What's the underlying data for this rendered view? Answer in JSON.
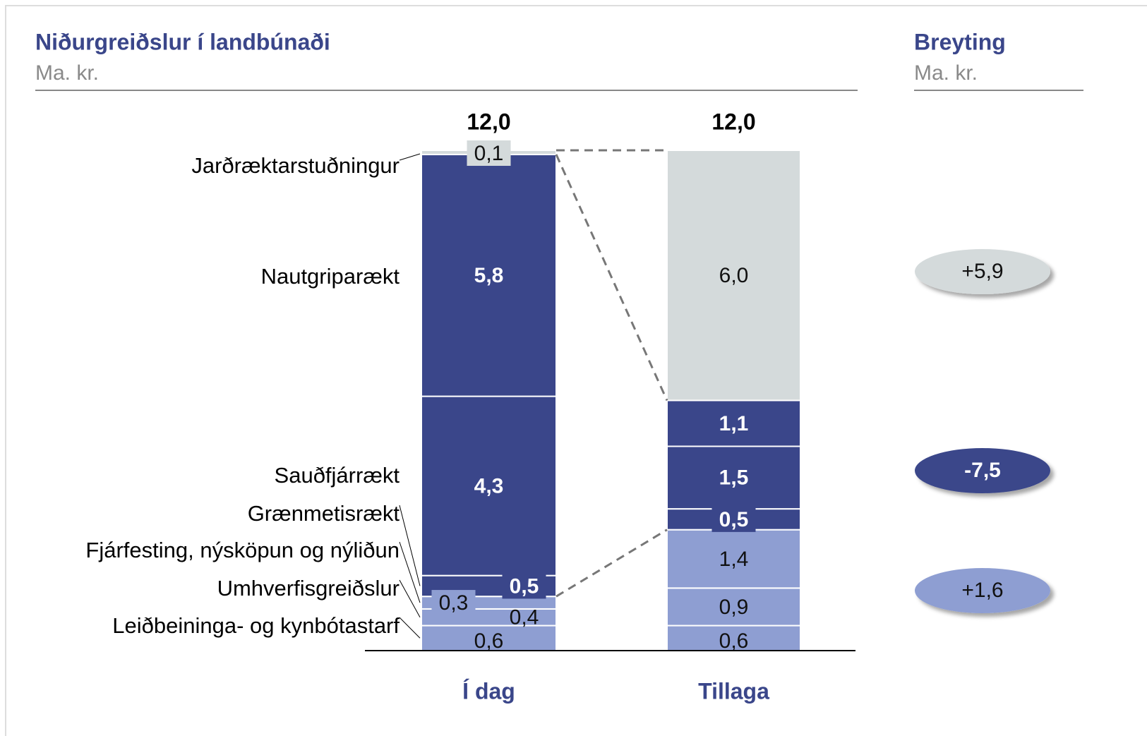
{
  "chart_data": {
    "type": "stacked_bar",
    "title": "Niðurgreiðslur í landbúnaði",
    "subtitle": "Ma. kr.",
    "change_title": "Breyting",
    "change_subtitle": "Ma. kr.",
    "categories": [
      "Í dag",
      "Tillaga"
    ],
    "totals": [
      12.0,
      12.0
    ],
    "total_labels": [
      "12,0",
      "12,0"
    ],
    "series": [
      {
        "name": "Leiðbeininga- og kynbótastarf",
        "color": "#8e9ed2",
        "values": [
          0.6,
          0.6
        ],
        "value_labels": [
          "0,6",
          "0,6"
        ]
      },
      {
        "name": "Umhverfisgreiðslur",
        "color": "#8e9ed2",
        "values": [
          0.4,
          0.9
        ],
        "value_labels": [
          "0,4",
          "0,9"
        ]
      },
      {
        "name": "Fjárfesting, nýsköpun og nýliðun",
        "color": "#8e9ed2",
        "values": [
          0.3,
          1.4
        ],
        "value_labels": [
          "0,3",
          "1,4"
        ]
      },
      {
        "name": "Grænmetisrækt",
        "color": "#3a468a",
        "values": [
          0.5,
          0.5
        ],
        "value_labels": [
          "0,5",
          "0,5"
        ]
      },
      {
        "name": "Sauðfjárrækt",
        "color": "#3a468a",
        "values": [
          4.3,
          1.5
        ],
        "value_labels": [
          "4,3",
          "1,5"
        ]
      },
      {
        "name": "Nautgriparækt",
        "color": "#3a468a",
        "values": [
          5.8,
          1.1
        ],
        "value_labels": [
          "5,8",
          "1,1"
        ]
      },
      {
        "name": "Jarðræktarstuðningur",
        "color": "#d4dadb",
        "values": [
          0.1,
          6.0
        ],
        "value_labels": [
          "0,1",
          "6,0"
        ]
      }
    ],
    "changes": [
      {
        "value": 5.9,
        "label": "+5,9",
        "color": "#d4dadb"
      },
      {
        "value": -7.5,
        "label": "-7,5",
        "color": "#3a468a"
      },
      {
        "value": 1.6,
        "label": "+1,6",
        "color": "#8e9ed2"
      }
    ]
  }
}
